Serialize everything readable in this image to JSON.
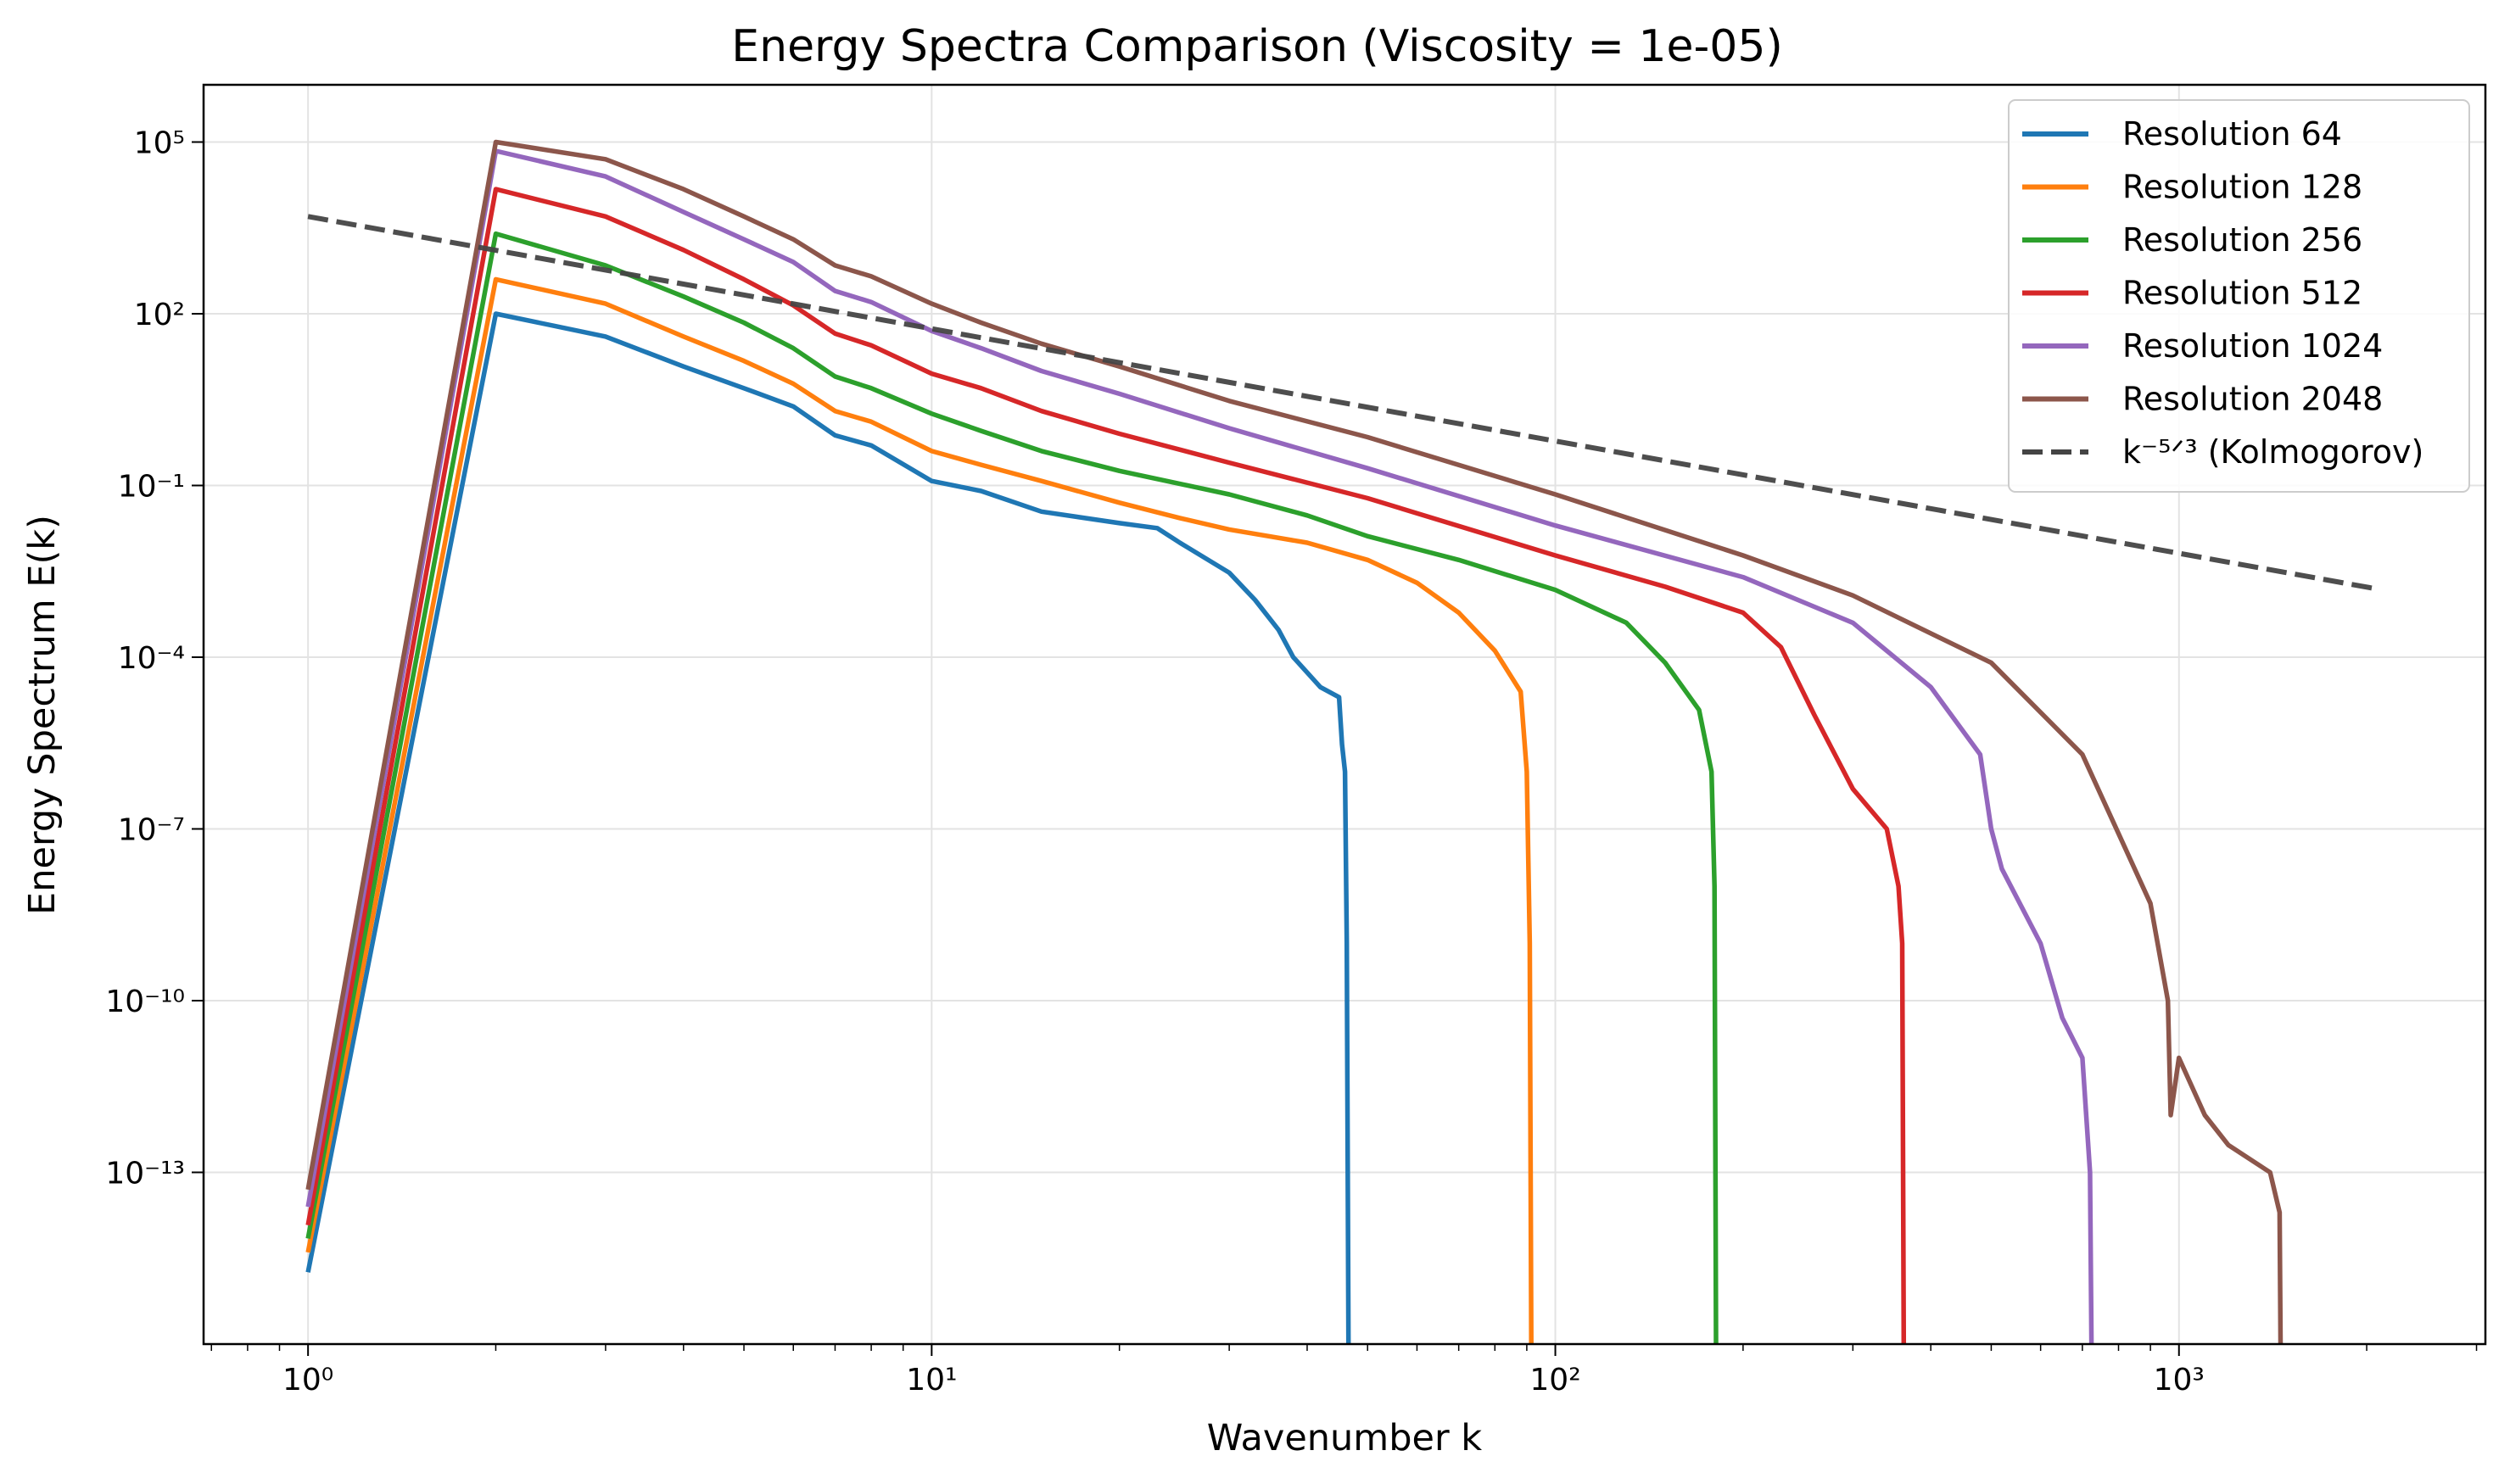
{
  "chart_data": {
    "type": "line",
    "title": "Energy Spectra Comparison (Viscosity = 1e-05)",
    "xlabel": "Wavenumber k",
    "ylabel": "Energy Spectrum E(k)",
    "xscale": "log",
    "yscale": "log",
    "xlim": [
      0.68,
      3100
    ],
    "ylim": [
      1e-16,
      1000000.0
    ],
    "xticks": [
      {
        "value": 1,
        "label": "10⁰"
      },
      {
        "value": 10,
        "label": "10¹"
      },
      {
        "value": 100,
        "label": "10²"
      },
      {
        "value": 1000,
        "label": "10³"
      }
    ],
    "yticks": [
      {
        "value": 100000.0,
        "label": "10⁵"
      },
      {
        "value": 100.0,
        "label": "10²"
      },
      {
        "value": 0.1,
        "label": "10⁻¹"
      },
      {
        "value": 0.0001,
        "label": "10⁻⁴"
      },
      {
        "value": 1e-07,
        "label": "10⁻⁷"
      },
      {
        "value": 1e-10,
        "label": "10⁻¹⁰"
      },
      {
        "value": 1e-13,
        "label": "10⁻¹³"
      }
    ],
    "grid": true,
    "legend_position": "top-right",
    "series": [
      {
        "name": "Resolution 64",
        "color": "#1f77b4",
        "style": "solid",
        "points": [
          [
            1,
            1.8e-15
          ],
          [
            2,
            100
          ],
          [
            3,
            40
          ],
          [
            4,
            12
          ],
          [
            5,
            5
          ],
          [
            6,
            2.4
          ],
          [
            7,
            0.75
          ],
          [
            8,
            0.5
          ],
          [
            10,
            0.12
          ],
          [
            12,
            0.08
          ],
          [
            15,
            0.035
          ],
          [
            20,
            0.022
          ],
          [
            23,
            0.018
          ],
          [
            25,
            0.01
          ],
          [
            30,
            0.003
          ],
          [
            33,
            0.001
          ],
          [
            36,
            0.0003
          ],
          [
            38,
            0.0001
          ],
          [
            42,
            3e-05
          ],
          [
            45,
            2e-05
          ],
          [
            45.5,
            3e-06
          ],
          [
            46,
            1e-06
          ],
          [
            46.3,
            1e-09
          ],
          [
            46.6,
            1e-16
          ]
        ]
      },
      {
        "name": "Resolution 128",
        "color": "#ff7f0e",
        "style": "solid",
        "points": [
          [
            1,
            4e-15
          ],
          [
            2,
            400
          ],
          [
            3,
            150
          ],
          [
            4,
            40
          ],
          [
            5,
            15
          ],
          [
            6,
            6
          ],
          [
            7,
            2
          ],
          [
            8,
            1.3
          ],
          [
            10,
            0.4
          ],
          [
            12,
            0.23
          ],
          [
            15,
            0.12
          ],
          [
            20,
            0.05
          ],
          [
            25,
            0.027
          ],
          [
            30,
            0.017
          ],
          [
            40,
            0.01
          ],
          [
            50,
            0.005
          ],
          [
            60,
            0.002
          ],
          [
            70,
            0.0006
          ],
          [
            80,
            0.00013
          ],
          [
            88,
            2.5e-05
          ],
          [
            90,
            1e-06
          ],
          [
            91,
            1e-09
          ],
          [
            91.5,
            1e-16
          ]
        ]
      },
      {
        "name": "Resolution 256",
        "color": "#2ca02c",
        "style": "solid",
        "points": [
          [
            1,
            7e-15
          ],
          [
            2,
            2500
          ],
          [
            3,
            700
          ],
          [
            4,
            200
          ],
          [
            5,
            70
          ],
          [
            6,
            25
          ],
          [
            7,
            8
          ],
          [
            8,
            5
          ],
          [
            10,
            1.8
          ],
          [
            12,
            0.9
          ],
          [
            15,
            0.4
          ],
          [
            20,
            0.18
          ],
          [
            30,
            0.07
          ],
          [
            40,
            0.03
          ],
          [
            50,
            0.013
          ],
          [
            70,
            0.005
          ],
          [
            100,
            0.0015
          ],
          [
            130,
            0.0004
          ],
          [
            150,
            8e-05
          ],
          [
            170,
            1.2e-05
          ],
          [
            178,
            1e-06
          ],
          [
            180,
            1e-08
          ],
          [
            181,
            1e-16
          ]
        ]
      },
      {
        "name": "Resolution 512",
        "color": "#d62728",
        "style": "solid",
        "points": [
          [
            1,
            1.2e-14
          ],
          [
            2,
            15000
          ],
          [
            3,
            5000
          ],
          [
            4,
            1300
          ],
          [
            5,
            400
          ],
          [
            6,
            140
          ],
          [
            7,
            45
          ],
          [
            8,
            28
          ],
          [
            10,
            9
          ],
          [
            12,
            5
          ],
          [
            15,
            2
          ],
          [
            20,
            0.8
          ],
          [
            30,
            0.25
          ],
          [
            50,
            0.06
          ],
          [
            100,
            0.006
          ],
          [
            150,
            0.0017
          ],
          [
            200,
            0.0006
          ],
          [
            230,
            0.00015
          ],
          [
            260,
            1e-05
          ],
          [
            300,
            5e-07
          ],
          [
            340,
            1e-07
          ],
          [
            355,
            1e-08
          ],
          [
            360,
            1e-09
          ],
          [
            362,
            1e-16
          ]
        ]
      },
      {
        "name": "Resolution 1024",
        "color": "#9467bd",
        "style": "solid",
        "points": [
          [
            1,
            2.5e-14
          ],
          [
            2,
            70000
          ],
          [
            3,
            25000
          ],
          [
            4,
            6000
          ],
          [
            5,
            2000
          ],
          [
            6,
            800
          ],
          [
            7,
            250
          ],
          [
            8,
            160
          ],
          [
            10,
            50
          ],
          [
            12,
            25
          ],
          [
            15,
            10
          ],
          [
            20,
            4
          ],
          [
            30,
            1
          ],
          [
            50,
            0.2
          ],
          [
            100,
            0.02
          ],
          [
            200,
            0.0025
          ],
          [
            300,
            0.0004
          ],
          [
            400,
            3e-05
          ],
          [
            480,
            2e-06
          ],
          [
            500,
            1e-07
          ],
          [
            520,
            2e-08
          ],
          [
            600,
            1e-09
          ],
          [
            650,
            5e-11
          ],
          [
            700,
            1e-11
          ],
          [
            720,
            1e-13
          ],
          [
            724,
            1e-16
          ]
        ]
      },
      {
        "name": "Resolution 2048",
        "color": "#8c564b",
        "style": "solid",
        "points": [
          [
            1,
            5e-14
          ],
          [
            2,
            100000
          ],
          [
            3,
            50000
          ],
          [
            4,
            15000
          ],
          [
            5,
            5000
          ],
          [
            6,
            2000
          ],
          [
            7,
            700
          ],
          [
            8,
            450
          ],
          [
            10,
            150
          ],
          [
            12,
            70
          ],
          [
            15,
            30
          ],
          [
            20,
            12
          ],
          [
            30,
            3
          ],
          [
            50,
            0.7
          ],
          [
            100,
            0.07
          ],
          [
            200,
            0.006
          ],
          [
            300,
            0.0012
          ],
          [
            500,
            8e-05
          ],
          [
            700,
            2e-06
          ],
          [
            900,
            5e-09
          ],
          [
            960,
            1e-10
          ],
          [
            970,
            1e-12
          ],
          [
            1000,
            1e-11
          ],
          [
            1100,
            1e-12
          ],
          [
            1200,
            3e-13
          ],
          [
            1400,
            1e-13
          ],
          [
            1450,
            2e-14
          ],
          [
            1455,
            1e-16
          ]
        ]
      },
      {
        "name": "k⁻⁵ᐟ³ (Kolmogorov)",
        "color": "#444444",
        "style": "dashed",
        "points": [
          [
            1,
            5000
          ],
          [
            2048,
            0.0016
          ]
        ]
      }
    ]
  }
}
